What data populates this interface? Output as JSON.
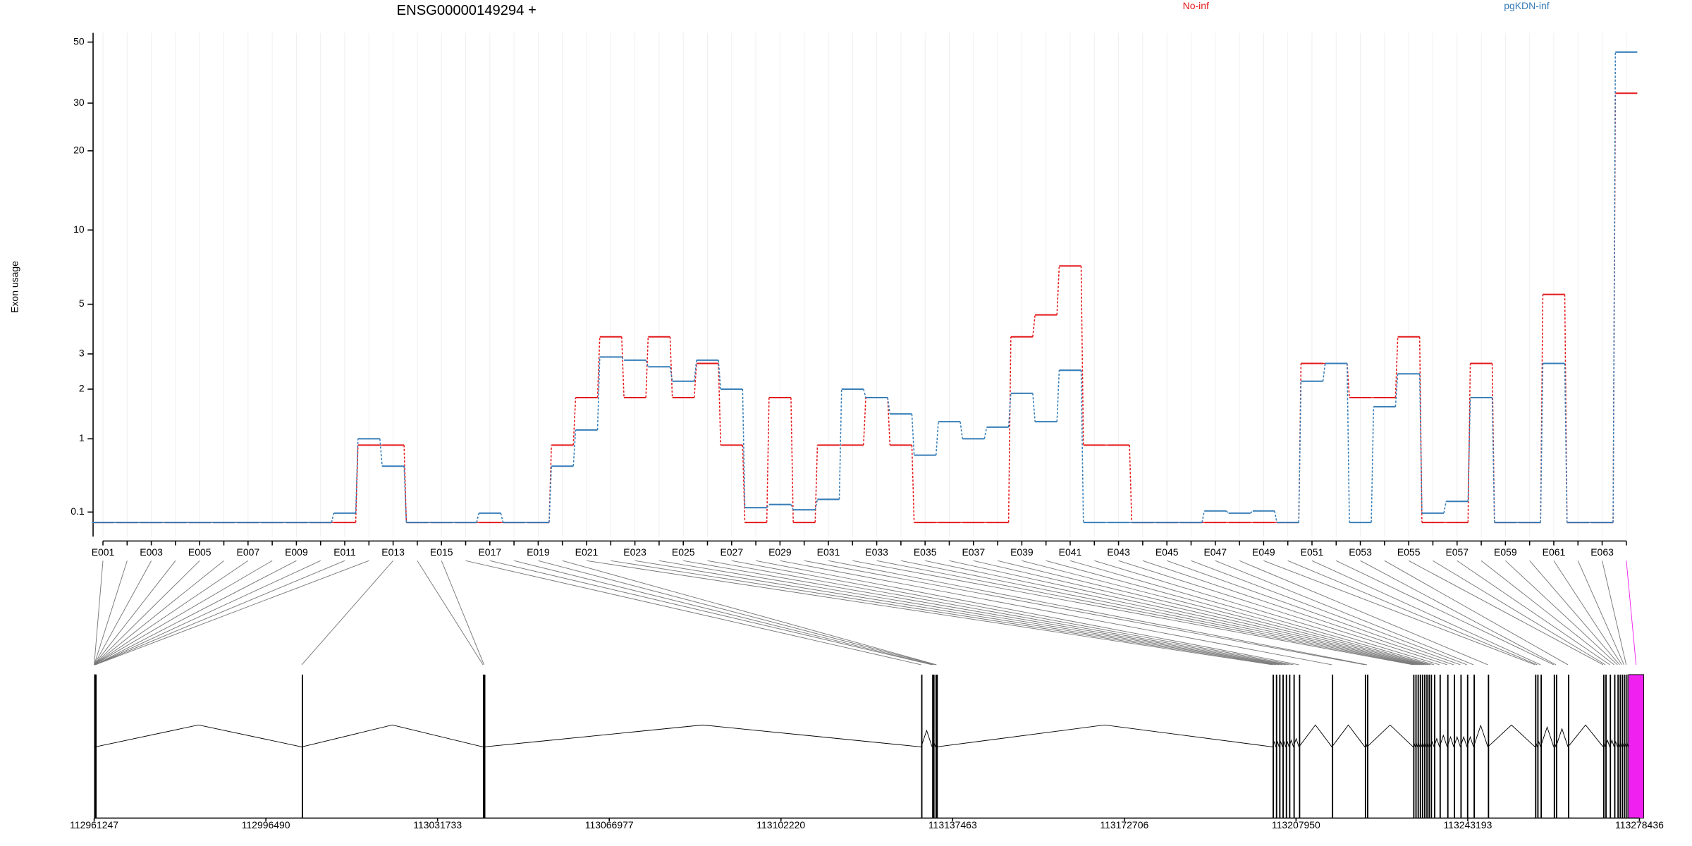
{
  "chart_data": {
    "type": "step",
    "title": "ENSG00000149294 +",
    "y_label": "Exon usage",
    "yscale": "log1p",
    "ylim": [
      -0.1,
      54
    ],
    "yticks": [
      0.1,
      1,
      2,
      3,
      5,
      10,
      20,
      30,
      50
    ],
    "grid": true,
    "categories": [
      "E001",
      null,
      "E003",
      null,
      "E005",
      null,
      "E007",
      null,
      "E009",
      null,
      "E011",
      null,
      "E013",
      null,
      "E015",
      null,
      "E017",
      null,
      "E019",
      null,
      "E021",
      null,
      "E023",
      null,
      "E025",
      null,
      "E027",
      null,
      "E029",
      null,
      "E031",
      null,
      "E033",
      null,
      "E035",
      null,
      "E037",
      null,
      "E039",
      null,
      "E041",
      null,
      "E043",
      null,
      "E045",
      null,
      "E047",
      null,
      "E049",
      null,
      "E051",
      null,
      "E053",
      null,
      "E055",
      null,
      "E057",
      null,
      "E059",
      null,
      "E061",
      null,
      "E063",
      null
    ],
    "series": [
      {
        "name": "No-inf",
        "color": "#e41a1c",
        "values": [
          0.01,
          0.01,
          0.01,
          0.01,
          0.01,
          0.01,
          0.01,
          0.01,
          0.01,
          0.01,
          0.01,
          0.9,
          0.9,
          0.01,
          0.01,
          0.01,
          0.01,
          0.01,
          0.01,
          0.9,
          1.8,
          3.6,
          1.8,
          3.6,
          1.8,
          2.7,
          0.9,
          0.01,
          1.8,
          0.01,
          0.9,
          0.9,
          1.8,
          0.9,
          0.01,
          0.01,
          0.01,
          0.01,
          3.6,
          4.5,
          7.2,
          0.9,
          0.9,
          0.01,
          0.01,
          0.01,
          0.01,
          0.01,
          0.01,
          0.01,
          2.7,
          2.7,
          1.8,
          1.8,
          3.6,
          0.01,
          0.01,
          2.7,
          0.01,
          0.01,
          5.5,
          0.01,
          0.01,
          32.6
        ]
      },
      {
        "name": "pgKDN-inf",
        "color": "#377eb8",
        "values": [
          0.01,
          0.01,
          0.01,
          0.01,
          0.01,
          0.01,
          0.01,
          0.01,
          0.01,
          0.01,
          0.09,
          1.0,
          0.6,
          0.01,
          0.01,
          0.01,
          0.09,
          0.01,
          0.01,
          0.6,
          1.15,
          2.9,
          2.8,
          2.6,
          2.2,
          2.8,
          2.0,
          0.14,
          0.17,
          0.12,
          0.22,
          2.0,
          1.8,
          1.45,
          0.75,
          1.3,
          1.0,
          1.2,
          1.9,
          1.3,
          2.5,
          0.01,
          0.01,
          0.01,
          0.01,
          0.01,
          0.11,
          0.09,
          0.11,
          0.01,
          2.2,
          2.7,
          0.01,
          1.6,
          2.4,
          0.09,
          0.2,
          1.8,
          0.01,
          0.01,
          2.7,
          0.01,
          0.01,
          46
        ]
      }
    ],
    "gene_model": {
      "xlim": [
        112961247,
        113278436
      ],
      "xticks": [
        112961247,
        112996490,
        113031733,
        113066977,
        113102220,
        113137463,
        113172706,
        113207950,
        113243193,
        113278436
      ],
      "exon_starts": [
        112961247,
        112961247,
        112961247,
        112961247,
        112961247,
        112961247,
        112961247,
        112961247,
        112961472,
        112961472,
        112961472,
        112961472,
        113003853,
        113041049,
        113041274,
        113130996,
        113133250,
        113133476,
        113133927,
        113134152,
        113203133,
        113203810,
        113204486,
        113205162,
        113205839,
        113206515,
        113207417,
        113208544,
        113215307,
        113222070,
        113222520,
        113231988,
        113232439,
        113232890,
        113233341,
        113233792,
        113234242,
        113234693,
        113235144,
        113235595,
        113236271,
        113237399,
        113238977,
        113240329,
        113241682,
        113243035,
        113244387,
        113247318,
        113257011,
        113257462,
        113258138,
        113260843,
        113261294,
        113263774,
        113270988,
        113271439,
        113272340,
        113273242,
        113273918,
        113274369,
        113274820,
        113275271,
        113275722,
        113276173
      ],
      "highlight": {
        "index": 63,
        "color": "#f020f0"
      }
    }
  }
}
